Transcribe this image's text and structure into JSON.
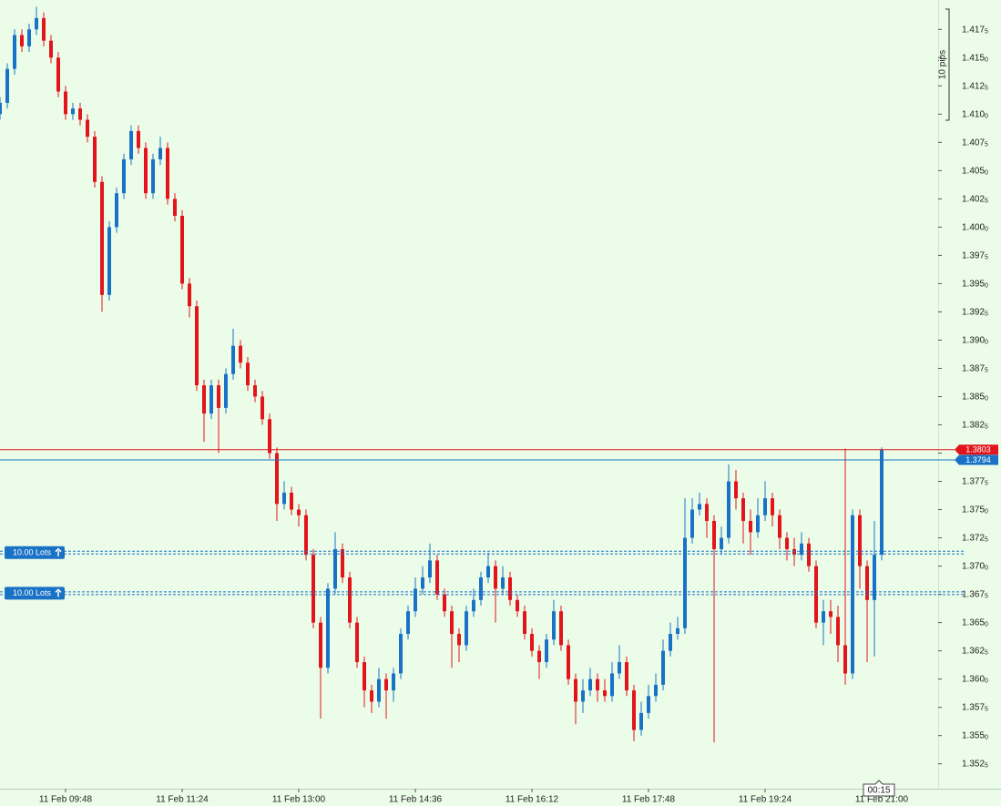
{
  "chart_data": {
    "type": "candlestick",
    "up_color": "#1a72c6",
    "down_color": "#e3141b",
    "xlim": [
      0,
      128.75
    ],
    "xticks": [
      {
        "value": 9,
        "label": "11 Feb 09:48"
      },
      {
        "value": 25,
        "label": "11 Feb 11:24"
      },
      {
        "value": 41,
        "label": "11 Feb 13:00"
      },
      {
        "value": 57,
        "label": "11 Feb 14:36"
      },
      {
        "value": 73,
        "label": "11 Feb 16:12"
      },
      {
        "value": 89,
        "label": "11 Feb 17:48"
      },
      {
        "value": 105,
        "label": "11 Feb 19:24"
      },
      {
        "value": 121,
        "label": "11 Feb 21:00"
      }
    ],
    "ylim": [
      1.3503,
      1.4201
    ],
    "yticks": [
      1.3525,
      {
        "value": 1.355,
        "label": "1.3550"
      },
      1.3575,
      {
        "value": 1.36,
        "label": "1.3600"
      },
      1.3625,
      {
        "value": 1.365,
        "label": "1.3650"
      },
      1.3675,
      {
        "value": 1.37,
        "label": "1.3700"
      },
      1.3725,
      {
        "value": 1.375,
        "label": "1.3750"
      },
      1.3775,
      {
        "value": 1.38,
        "label": "1.3800"
      },
      1.3825,
      {
        "value": 1.385,
        "label": "1.3850"
      },
      1.3875,
      {
        "value": 1.39,
        "label": "1.3900"
      },
      1.3925,
      {
        "value": 1.395,
        "label": "1.3950"
      },
      1.3975,
      {
        "value": 1.4,
        "label": "1.4000"
      },
      1.4025,
      {
        "value": 1.405,
        "label": "1.4050"
      },
      1.4075,
      {
        "value": 1.41,
        "label": "1.4100"
      },
      1.4125,
      {
        "value": 1.415,
        "label": "1.4150"
      },
      1.4175
    ],
    "open": [
      1.41,
      1.411,
      1.414,
      1.417,
      1.416,
      1.4175,
      1.4185,
      1.4165,
      1.415,
      1.412,
      1.41,
      1.4105,
      1.4095,
      1.408,
      1.404,
      1.394,
      1.4,
      1.403,
      1.406,
      1.4085,
      1.407,
      1.403,
      1.406,
      1.407,
      1.4025,
      1.401,
      1.395,
      1.393,
      1.386,
      1.3835,
      1.386,
      1.384,
      1.387,
      1.3895,
      1.388,
      1.386,
      1.385,
      1.383,
      1.38,
      1.3755,
      1.3765,
      1.375,
      1.3745,
      1.371,
      1.365,
      1.361,
      1.368,
      1.3715,
      1.369,
      1.365,
      1.3615,
      1.359,
      1.358,
      1.36,
      1.359,
      1.3605,
      1.364,
      1.366,
      1.368,
      1.369,
      1.3705,
      1.3675,
      1.366,
      1.364,
      1.363,
      1.366,
      1.367,
      1.369,
      1.37,
      1.368,
      1.369,
      1.367,
      1.366,
      1.364,
      1.3625,
      1.3615,
      1.3635,
      1.366,
      1.363,
      1.36,
      1.358,
      1.359,
      1.36,
      1.359,
      1.3585,
      1.3605,
      1.3615,
      1.359,
      1.3555,
      1.357,
      1.3585,
      1.3595,
      1.3625,
      1.364,
      1.3645,
      1.3725,
      1.375,
      1.3755,
      1.374,
      1.3715,
      1.3725,
      1.3775,
      1.376,
      1.374,
      1.373,
      1.3745,
      1.376,
      1.3745,
      1.3725,
      1.3715,
      1.371,
      1.372,
      1.37,
      1.365,
      1.366,
      1.3655,
      1.363,
      1.3605,
      1.3745,
      1.37,
      1.367,
      1.371
    ],
    "high": [
      1.4115,
      1.4145,
      1.4175,
      1.4175,
      1.418,
      1.4195,
      1.419,
      1.417,
      1.4155,
      1.4125,
      1.411,
      1.411,
      1.41,
      1.4085,
      1.4045,
      1.4005,
      1.4035,
      1.4065,
      1.409,
      1.409,
      1.4075,
      1.4065,
      1.408,
      1.4075,
      1.403,
      1.4015,
      1.3955,
      1.3935,
      1.3865,
      1.3865,
      1.3865,
      1.3875,
      1.391,
      1.39,
      1.3885,
      1.3865,
      1.3855,
      1.3835,
      1.3805,
      1.3775,
      1.377,
      1.3755,
      1.375,
      1.3715,
      1.3655,
      1.3685,
      1.373,
      1.372,
      1.3695,
      1.3655,
      1.362,
      1.3595,
      1.361,
      1.3605,
      1.361,
      1.3645,
      1.3665,
      1.369,
      1.37,
      1.372,
      1.371,
      1.368,
      1.3665,
      1.3645,
      1.3665,
      1.368,
      1.3695,
      1.3712,
      1.3705,
      1.37,
      1.3695,
      1.3675,
      1.3665,
      1.3645,
      1.363,
      1.364,
      1.367,
      1.3665,
      1.3635,
      1.3605,
      1.36,
      1.361,
      1.3605,
      1.36,
      1.3615,
      1.363,
      1.362,
      1.3595,
      1.358,
      1.3595,
      1.3605,
      1.3635,
      1.365,
      1.3655,
      1.376,
      1.376,
      1.3765,
      1.376,
      1.3745,
      1.3735,
      1.379,
      1.3785,
      1.3765,
      1.375,
      1.376,
      1.3775,
      1.3765,
      1.375,
      1.373,
      1.3725,
      1.373,
      1.3725,
      1.3705,
      1.367,
      1.367,
      1.3665,
      1.3804,
      1.375,
      1.375,
      1.3705,
      1.374,
      1.3805
    ],
    "low": [
      1.4095,
      1.4105,
      1.4135,
      1.4155,
      1.4155,
      1.417,
      1.416,
      1.4145,
      1.4115,
      1.4095,
      1.4095,
      1.409,
      1.4075,
      1.4035,
      1.3925,
      1.3935,
      1.3995,
      1.4025,
      1.4055,
      1.4065,
      1.4025,
      1.4025,
      1.4055,
      1.402,
      1.4005,
      1.3945,
      1.392,
      1.3855,
      1.381,
      1.383,
      1.38,
      1.3835,
      1.3865,
      1.3875,
      1.3855,
      1.3845,
      1.3825,
      1.3795,
      1.374,
      1.375,
      1.3745,
      1.3735,
      1.3705,
      1.3645,
      1.3565,
      1.3605,
      1.3675,
      1.3685,
      1.3645,
      1.361,
      1.3575,
      1.357,
      1.3575,
      1.3565,
      1.358,
      1.36,
      1.3635,
      1.3655,
      1.3675,
      1.3685,
      1.367,
      1.3655,
      1.361,
      1.3615,
      1.3625,
      1.3655,
      1.3665,
      1.3685,
      1.365,
      1.3675,
      1.3665,
      1.3655,
      1.3635,
      1.362,
      1.36,
      1.361,
      1.363,
      1.3625,
      1.3595,
      1.356,
      1.357,
      1.3585,
      1.358,
      1.358,
      1.358,
      1.36,
      1.3585,
      1.3545,
      1.355,
      1.3565,
      1.358,
      1.359,
      1.362,
      1.3635,
      1.364,
      1.372,
      1.3745,
      1.3725,
      1.3544,
      1.371,
      1.372,
      1.375,
      1.372,
      1.371,
      1.3725,
      1.374,
      1.3735,
      1.3715,
      1.3705,
      1.37,
      1.3705,
      1.3695,
      1.3645,
      1.363,
      1.364,
      1.3615,
      1.3595,
      1.36,
      1.368,
      1.3615,
      1.362,
      1.3705
    ],
    "close": [
      1.411,
      1.414,
      1.417,
      1.416,
      1.4175,
      1.4185,
      1.4165,
      1.415,
      1.412,
      1.41,
      1.4105,
      1.4095,
      1.408,
      1.404,
      1.394,
      1.4,
      1.403,
      1.406,
      1.4085,
      1.407,
      1.403,
      1.406,
      1.407,
      1.4025,
      1.401,
      1.395,
      1.393,
      1.386,
      1.3835,
      1.386,
      1.384,
      1.387,
      1.3895,
      1.388,
      1.386,
      1.385,
      1.383,
      1.38,
      1.3755,
      1.3765,
      1.375,
      1.3745,
      1.371,
      1.365,
      1.361,
      1.368,
      1.3715,
      1.369,
      1.365,
      1.3615,
      1.359,
      1.358,
      1.36,
      1.359,
      1.3605,
      1.364,
      1.366,
      1.368,
      1.369,
      1.3705,
      1.3675,
      1.366,
      1.364,
      1.363,
      1.366,
      1.367,
      1.369,
      1.37,
      1.368,
      1.369,
      1.367,
      1.366,
      1.364,
      1.3625,
      1.3615,
      1.3635,
      1.366,
      1.363,
      1.36,
      1.358,
      1.359,
      1.36,
      1.359,
      1.3585,
      1.3605,
      1.3615,
      1.359,
      1.3555,
      1.357,
      1.3585,
      1.3595,
      1.3625,
      1.364,
      1.3645,
      1.3725,
      1.375,
      1.3755,
      1.374,
      1.3715,
      1.3725,
      1.3775,
      1.376,
      1.374,
      1.373,
      1.3745,
      1.376,
      1.3745,
      1.3725,
      1.3715,
      1.371,
      1.372,
      1.37,
      1.365,
      1.366,
      1.3655,
      1.363,
      1.3605,
      1.3745,
      1.37,
      1.367,
      1.371,
      1.3803
    ],
    "price_lines": [
      {
        "value": 1.3803,
        "color": "#e3141b"
      },
      {
        "value": 1.3794,
        "color": "#1a72c6"
      }
    ],
    "orders": [
      {
        "label": "10.00 Lots",
        "value": 1.3712
      },
      {
        "label": "10.00 Lots",
        "value": 1.3676
      }
    ],
    "scale_label": "10 pips",
    "timer": "00:15"
  }
}
